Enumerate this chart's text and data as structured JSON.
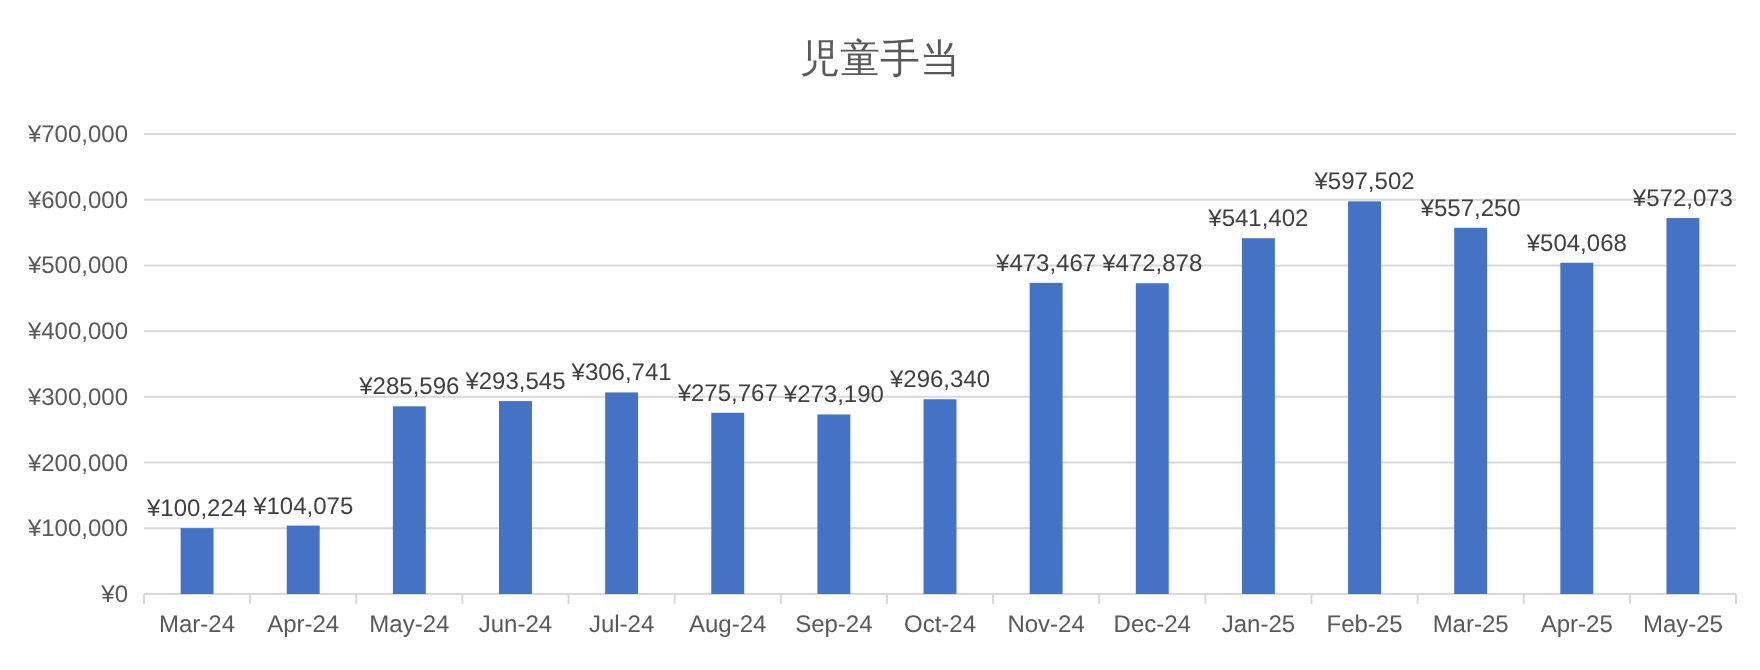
{
  "chart_data": {
    "type": "bar",
    "title": "児童手当",
    "categories": [
      "Mar-24",
      "Apr-24",
      "May-24",
      "Jun-24",
      "Jul-24",
      "Aug-24",
      "Sep-24",
      "Oct-24",
      "Nov-24",
      "Dec-24",
      "Jan-25",
      "Feb-25",
      "Mar-25",
      "Apr-25",
      "May-25"
    ],
    "values": [
      100224,
      104075,
      285596,
      293545,
      306741,
      275767,
      273190,
      296340,
      473467,
      472878,
      541402,
      597502,
      557250,
      504068,
      572073
    ],
    "value_labels": [
      "¥100,224",
      "¥104,075",
      "¥285,596",
      "¥293,545",
      "¥306,741",
      "¥275,767",
      "¥273,190",
      "¥296,340",
      "¥473,467",
      "¥472,878",
      "¥541,402",
      "¥597,502",
      "¥557,250",
      "¥504,068",
      "¥572,073"
    ],
    "color": "#4472c4",
    "ylim": [
      0,
      700000
    ],
    "yticks": [
      {
        "value": 0,
        "label": "¥0"
      },
      {
        "value": 100000,
        "label": "¥100,000"
      },
      {
        "value": 200000,
        "label": "¥200,000"
      },
      {
        "value": 300000,
        "label": "¥300,000"
      },
      {
        "value": 400000,
        "label": "¥400,000"
      },
      {
        "value": 500000,
        "label": "¥500,000"
      },
      {
        "value": 600000,
        "label": "¥600,000"
      },
      {
        "value": 700000,
        "label": "¥700,000"
      }
    ],
    "grid": "y"
  }
}
